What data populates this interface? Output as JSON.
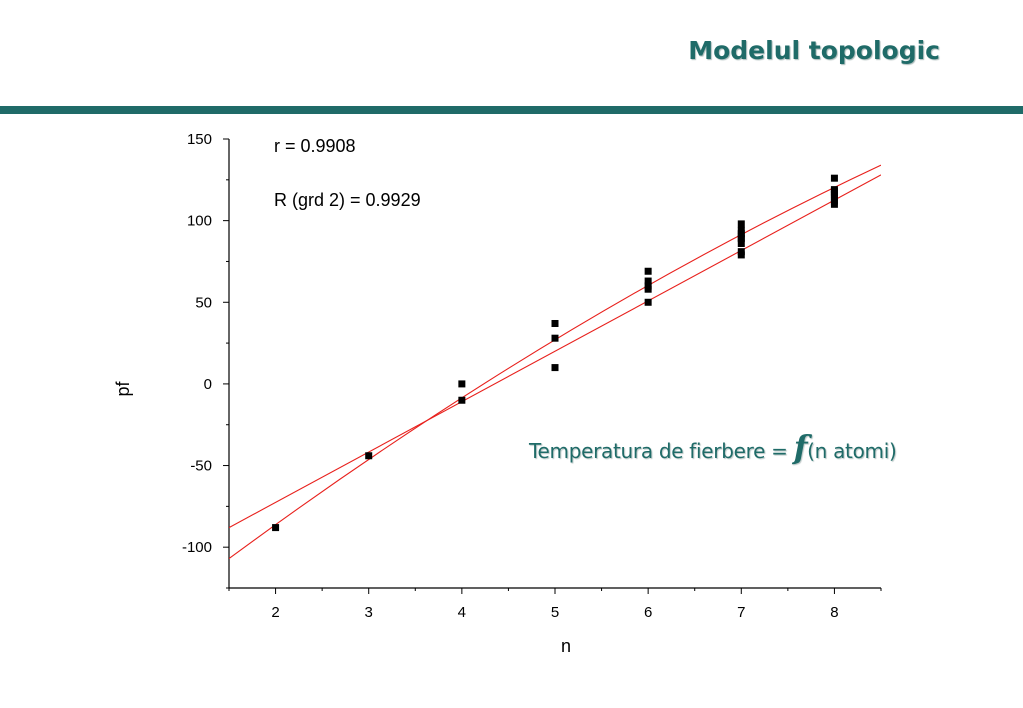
{
  "slide": {
    "title": "Modelul topologic",
    "caption": {
      "prefix": "Temperatura de fierbere = ",
      "func": "f",
      "suffix": "(n atomi)"
    }
  },
  "chart_data": {
    "type": "scatter",
    "title": "",
    "xlabel": "n",
    "ylabel": "pf",
    "xlim": [
      1.5,
      8.5
    ],
    "ylim": [
      -125,
      150
    ],
    "x_ticks": [
      2,
      3,
      4,
      5,
      6,
      7,
      8
    ],
    "y_ticks": [
      -100,
      -50,
      0,
      50,
      100,
      150
    ],
    "grid": false,
    "colors": {
      "points": "#000000",
      "fit_lines": "#e8201c"
    },
    "annotations": [
      "r = 0.9908",
      "R (grd 2) = 0.9929"
    ],
    "points": [
      {
        "x": 2,
        "y": -88
      },
      {
        "x": 3,
        "y": -44
      },
      {
        "x": 4,
        "y": 0
      },
      {
        "x": 4,
        "y": -10
      },
      {
        "x": 5,
        "y": 37
      },
      {
        "x": 5,
        "y": 28
      },
      {
        "x": 5,
        "y": 10
      },
      {
        "x": 6,
        "y": 69
      },
      {
        "x": 6,
        "y": 63
      },
      {
        "x": 6,
        "y": 60
      },
      {
        "x": 6,
        "y": 58
      },
      {
        "x": 6,
        "y": 50
      },
      {
        "x": 7,
        "y": 98
      },
      {
        "x": 7,
        "y": 94
      },
      {
        "x": 7,
        "y": 92
      },
      {
        "x": 7,
        "y": 90
      },
      {
        "x": 7,
        "y": 89
      },
      {
        "x": 7,
        "y": 86
      },
      {
        "x": 7,
        "y": 81
      },
      {
        "x": 7,
        "y": 79
      },
      {
        "x": 8,
        "y": 126
      },
      {
        "x": 8,
        "y": 119
      },
      {
        "x": 8,
        "y": 118
      },
      {
        "x": 8,
        "y": 117
      },
      {
        "x": 8,
        "y": 116
      },
      {
        "x": 8,
        "y": 114
      },
      {
        "x": 8,
        "y": 112
      },
      {
        "x": 8,
        "y": 110
      }
    ],
    "fits": [
      {
        "kind": "linear",
        "from": [
          1.5,
          -88
        ],
        "to": [
          8.5,
          128
        ]
      },
      {
        "kind": "quadratic",
        "from": [
          1.5,
          -107
        ],
        "mid": [
          5,
          27
        ],
        "to": [
          8.5,
          134
        ]
      }
    ]
  }
}
